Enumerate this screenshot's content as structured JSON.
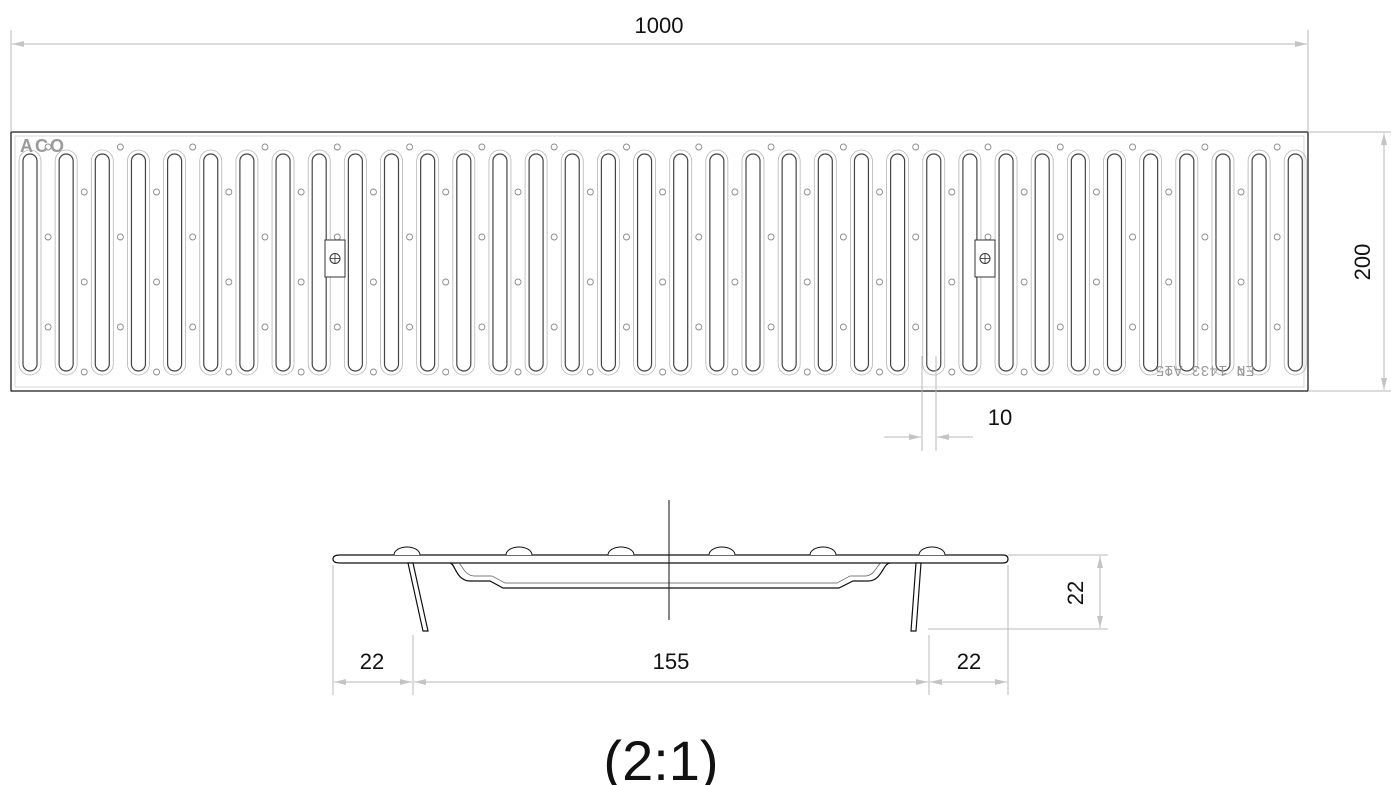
{
  "colors": {
    "line": "#111111",
    "dim_line": "#b8b8b8",
    "arrow": "#c4c4c4",
    "slot": "#555555",
    "hole": "#8a8a8a",
    "embossed": "#9a9a9a"
  },
  "top_view": {
    "brand": "ACO",
    "marking": "EN 1433  A15",
    "slot_count": 36,
    "mounting_clips": 2
  },
  "dimensions": {
    "length": "1000",
    "width": "200",
    "slot_width": "10",
    "profile_height": "22",
    "left_leg": "22",
    "center_span": "155",
    "right_leg": "22"
  },
  "scale_label": "(2:1)"
}
